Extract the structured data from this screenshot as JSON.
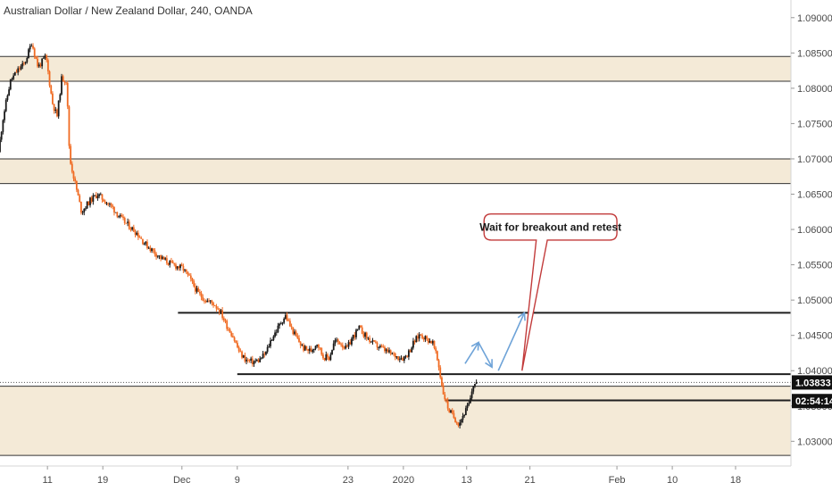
{
  "header": {
    "title": "Australian Dollar / New Zealand Dollar, 240, OANDA"
  },
  "chart_data": {
    "type": "candlestick",
    "y_ticks": [
      "1.09000",
      "1.08500",
      "1.08000",
      "1.07500",
      "1.07000",
      "1.06500",
      "1.06000",
      "1.05500",
      "1.05000",
      "1.04500",
      "1.04000",
      "1.03500",
      "1.03000"
    ],
    "y_tick_values": [
      1.09,
      1.085,
      1.08,
      1.075,
      1.07,
      1.065,
      1.06,
      1.055,
      1.05,
      1.045,
      1.04,
      1.035,
      1.03
    ],
    "ylim": [
      1.0265,
      1.0925
    ],
    "x_ticks": [
      "11",
      "19",
      "Dec",
      "9",
      "23",
      "2020",
      "13",
      "21",
      "Feb",
      "10",
      "18"
    ],
    "x_tick_positions": [
      6,
      13,
      23,
      30,
      44,
      51,
      59,
      67,
      78,
      85,
      93
    ],
    "xlim": [
      0,
      100
    ],
    "price_path": [
      [
        0,
        1.071
      ],
      [
        0.6,
        1.076
      ],
      [
        1.5,
        1.081
      ],
      [
        2.4,
        1.0825
      ],
      [
        3.3,
        1.0835
      ],
      [
        4.2,
        1.0865
      ],
      [
        5.0,
        1.083
      ],
      [
        6.0,
        1.0845
      ],
      [
        6.8,
        1.078
      ],
      [
        7.4,
        1.076
      ],
      [
        8.0,
        1.0815
      ],
      [
        8.6,
        1.081
      ],
      [
        9.0,
        1.07
      ],
      [
        9.8,
        1.066
      ],
      [
        10.5,
        1.0625
      ],
      [
        11.5,
        1.064
      ],
      [
        12.5,
        1.065
      ],
      [
        13.5,
        1.064
      ],
      [
        14.5,
        1.063
      ],
      [
        15.5,
        1.0615
      ],
      [
        16.5,
        1.0605
      ],
      [
        17.5,
        1.0595
      ],
      [
        18.5,
        1.058
      ],
      [
        19.5,
        1.057
      ],
      [
        20.5,
        1.056
      ],
      [
        21.5,
        1.0553
      ],
      [
        22.5,
        1.0548
      ],
      [
        23.3,
        1.0545
      ],
      [
        24.2,
        1.053
      ],
      [
        25.2,
        1.051
      ],
      [
        26.2,
        1.05
      ],
      [
        27.2,
        1.0495
      ],
      [
        28.0,
        1.0485
      ],
      [
        28.8,
        1.0465
      ],
      [
        29.6,
        1.045
      ],
      [
        30.5,
        1.0425
      ],
      [
        31.3,
        1.0415
      ],
      [
        32.2,
        1.0412
      ],
      [
        33.0,
        1.0415
      ],
      [
        33.8,
        1.0425
      ],
      [
        34.5,
        1.0445
      ],
      [
        35.2,
        1.0458
      ],
      [
        35.8,
        1.047
      ],
      [
        36.3,
        1.0478
      ],
      [
        36.8,
        1.0465
      ],
      [
        37.5,
        1.045
      ],
      [
        38.5,
        1.0432
      ],
      [
        39.5,
        1.0428
      ],
      [
        40.3,
        1.044
      ],
      [
        41.0,
        1.042
      ],
      [
        41.8,
        1.0418
      ],
      [
        42.5,
        1.0442
      ],
      [
        43.2,
        1.044
      ],
      [
        44.0,
        1.043
      ],
      [
        44.8,
        1.0448
      ],
      [
        45.6,
        1.046
      ],
      [
        46.5,
        1.0448
      ],
      [
        47.4,
        1.0438
      ],
      [
        48.4,
        1.0432
      ],
      [
        49.4,
        1.0425
      ],
      [
        50.4,
        1.042
      ],
      [
        51.2,
        1.0418
      ],
      [
        51.8,
        1.0425
      ],
      [
        52.5,
        1.044
      ],
      [
        53.3,
        1.0452
      ],
      [
        54.1,
        1.0445
      ],
      [
        54.9,
        1.044
      ],
      [
        55.6,
        1.041
      ],
      [
        56.2,
        1.037
      ],
      [
        56.9,
        1.0345
      ],
      [
        57.5,
        1.0335
      ],
      [
        58.2,
        1.0325
      ],
      [
        58.9,
        1.034
      ],
      [
        59.6,
        1.0355
      ],
      [
        60.0,
        1.038
      ],
      [
        60.4,
        1.0383
      ]
    ],
    "zones": [
      {
        "low": 1.081,
        "high": 1.0845
      },
      {
        "low": 1.0665,
        "high": 1.07
      },
      {
        "low": 1.028,
        "high": 1.0378
      }
    ],
    "lines": [
      {
        "y": 1.0482,
        "x_start": 22.5
      },
      {
        "y": 1.0395,
        "x_start": 30.0
      },
      {
        "y": 1.0358,
        "x_start": 56.3
      }
    ],
    "dotted_line": {
      "y": 1.03833
    },
    "arrow_path": [
      [
        58.8,
        1.041
      ],
      [
        60.5,
        1.044
      ],
      [
        62.2,
        1.0405
      ],
      [
        63.0,
        1.04
      ],
      [
        64.5,
        1.044
      ],
      [
        66.3,
        1.0482
      ]
    ],
    "callout": {
      "text": "Wait for breakout and retest",
      "x_left": 61.2,
      "x_right": 78.0,
      "y_top": 1.0622,
      "y_bottom": 1.0585,
      "pointer_tip": [
        66.0,
        1.04
      ],
      "pointer_base": [
        67.8,
        69.2
      ]
    },
    "price_tag": {
      "label": "1.03833",
      "y": 1.03833
    },
    "countdown_tag": {
      "label": "02:54:14",
      "y": 1.0357
    }
  },
  "colors": {
    "up_candle": "#1a1a1a",
    "down_candle": "#f06b23",
    "zone_fill": "#f4ead7",
    "zone_border": "#333333",
    "line": "#1f1f1f",
    "arrow": "#6ea3d8",
    "callout_border": "#c23b3b",
    "axis_border": "#d5d5d5",
    "tag_bg": "#111111",
    "tag_text": "#ffffff"
  }
}
